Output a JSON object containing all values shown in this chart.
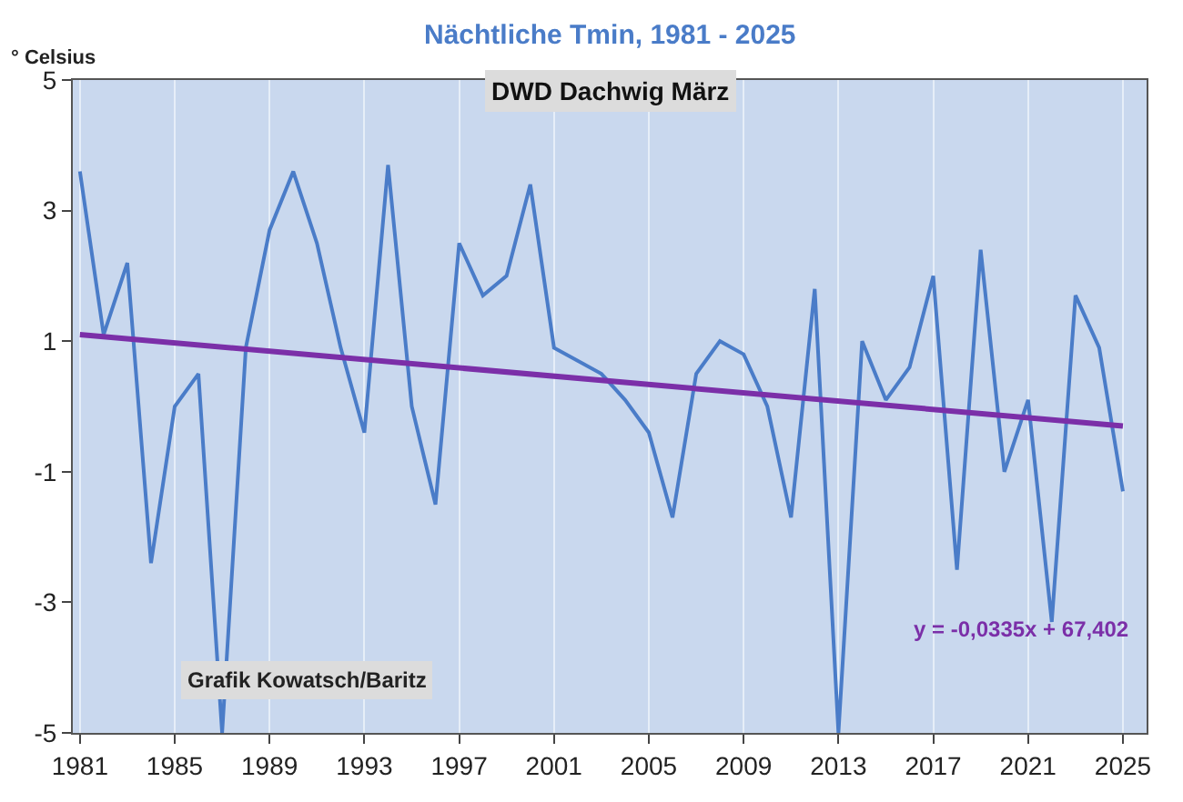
{
  "chart_data": {
    "type": "line",
    "title": "Nächtliche Tmin, 1981 - 2025",
    "subtitle": "DWD Dachwig März",
    "ylabel": "° Celsius",
    "x": [
      1981,
      1982,
      1983,
      1984,
      1985,
      1986,
      1987,
      1988,
      1989,
      1990,
      1991,
      1992,
      1993,
      1994,
      1995,
      1996,
      1997,
      1998,
      1999,
      2000,
      2001,
      2002,
      2003,
      2004,
      2005,
      2006,
      2007,
      2008,
      2009,
      2010,
      2011,
      2012,
      2013,
      2014,
      2015,
      2016,
      2017,
      2018,
      2019,
      2020,
      2021,
      2022,
      2023,
      2024,
      2025
    ],
    "series": [
      {
        "color": "#4a7cc8",
        "values": [
          3.6,
          1.1,
          2.2,
          -2.4,
          0.0,
          0.5,
          -5.0,
          0.9,
          2.7,
          3.6,
          2.5,
          0.9,
          -0.4,
          3.7,
          0.0,
          -1.5,
          2.5,
          1.7,
          2.0,
          3.4,
          0.9,
          0.7,
          0.5,
          0.1,
          -0.4,
          -1.7,
          0.5,
          1.0,
          0.8,
          0.0,
          -1.7,
          1.8,
          -5.0,
          1.0,
          0.1,
          0.6,
          2.0,
          -2.5,
          2.4,
          -1.0,
          0.1,
          -3.3,
          1.7,
          0.9,
          -1.3
        ]
      },
      {
        "type": "line",
        "color": "#7b2fa8",
        "x": [
          1981,
          2025
        ],
        "values": [
          1.1,
          -0.3
        ]
      }
    ],
    "xlim": [
      1980.7,
      2026
    ],
    "xticks": [
      1981,
      1985,
      1989,
      1993,
      1997,
      2001,
      2005,
      2009,
      2013,
      2017,
      2021,
      2025
    ],
    "ylim": [
      -5,
      5
    ],
    "yticks": [
      5,
      3,
      1,
      -1,
      -3,
      -5
    ],
    "grid": "x",
    "annotations": [
      "Grafik Kowatsch/Baritz",
      "y = -0,0335x + 67,402"
    ]
  }
}
